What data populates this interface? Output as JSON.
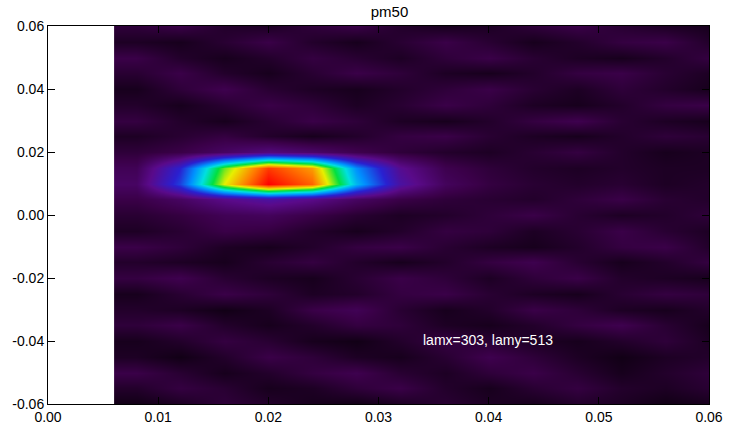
{
  "chart_data": {
    "type": "heatmap",
    "title": "pm50",
    "annotations": [
      "lamx=303, lamy=513"
    ],
    "x": [
      0.008,
      0.012,
      0.016,
      0.02,
      0.024,
      0.028,
      0.032,
      0.036,
      0.04,
      0.044,
      0.048,
      0.052,
      0.056,
      0.06
    ],
    "y": [
      -0.06,
      -0.055,
      -0.05,
      -0.045,
      -0.04,
      -0.035,
      -0.03,
      -0.025,
      -0.02,
      -0.015,
      -0.01,
      -0.005,
      0.0,
      0.005,
      0.01,
      0.015,
      0.02,
      0.025,
      0.03,
      0.035,
      0.04,
      0.045,
      0.05,
      0.055,
      0.06
    ],
    "z": [
      [
        0.03,
        0.05,
        0.08,
        0.06,
        0.04,
        0.03,
        0.05,
        0.07,
        0.05,
        0.04,
        0.06,
        0.05,
        0.03,
        0.04
      ],
      [
        0.06,
        0.09,
        0.07,
        0.04,
        0.05,
        0.08,
        0.1,
        0.06,
        0.04,
        0.07,
        0.09,
        0.06,
        0.05,
        0.07
      ],
      [
        0.1,
        0.07,
        0.04,
        0.06,
        0.09,
        0.11,
        0.07,
        0.05,
        0.08,
        0.1,
        0.07,
        0.04,
        0.06,
        0.08
      ],
      [
        0.05,
        0.03,
        0.06,
        0.1,
        0.08,
        0.05,
        0.04,
        0.07,
        0.11,
        0.08,
        0.05,
        0.03,
        0.05,
        0.06
      ],
      [
        0.04,
        0.06,
        0.09,
        0.07,
        0.04,
        0.03,
        0.06,
        0.09,
        0.07,
        0.05,
        0.04,
        0.06,
        0.08,
        0.05
      ],
      [
        0.08,
        0.1,
        0.06,
        0.04,
        0.06,
        0.09,
        0.08,
        0.05,
        0.04,
        0.06,
        0.09,
        0.11,
        0.07,
        0.04
      ],
      [
        0.06,
        0.05,
        0.03,
        0.05,
        0.1,
        0.12,
        0.07,
        0.04,
        0.06,
        0.1,
        0.08,
        0.05,
        0.04,
        0.06
      ],
      [
        0.04,
        0.07,
        0.1,
        0.08,
        0.05,
        0.06,
        0.09,
        0.1,
        0.07,
        0.05,
        0.04,
        0.07,
        0.09,
        0.08
      ],
      [
        0.09,
        0.11,
        0.07,
        0.05,
        0.04,
        0.07,
        0.1,
        0.08,
        0.05,
        0.08,
        0.1,
        0.06,
        0.05,
        0.04
      ],
      [
        0.06,
        0.05,
        0.04,
        0.07,
        0.09,
        0.06,
        0.04,
        0.06,
        0.09,
        0.11,
        0.07,
        0.04,
        0.06,
        0.09
      ],
      [
        0.1,
        0.08,
        0.05,
        0.04,
        0.06,
        0.09,
        0.1,
        0.07,
        0.05,
        0.04,
        0.06,
        0.09,
        0.1,
        0.06
      ],
      [
        0.05,
        0.07,
        0.1,
        0.09,
        0.06,
        0.04,
        0.06,
        0.09,
        0.08,
        0.05,
        0.07,
        0.1,
        0.07,
        0.05
      ],
      [
        0.07,
        0.09,
        0.12,
        0.13,
        0.1,
        0.07,
        0.05,
        0.06,
        0.08,
        0.1,
        0.07,
        0.05,
        0.06,
        0.08
      ],
      [
        0.1,
        0.14,
        0.2,
        0.24,
        0.2,
        0.14,
        0.1,
        0.08,
        0.07,
        0.06,
        0.08,
        0.1,
        0.07,
        0.06
      ],
      [
        0.14,
        0.36,
        0.76,
        1.0,
        0.9,
        0.5,
        0.24,
        0.13,
        0.09,
        0.07,
        0.06,
        0.07,
        0.05,
        0.06
      ],
      [
        0.12,
        0.32,
        0.7,
        0.94,
        0.84,
        0.45,
        0.21,
        0.11,
        0.08,
        0.06,
        0.05,
        0.06,
        0.05,
        0.05
      ],
      [
        0.08,
        0.1,
        0.14,
        0.18,
        0.15,
        0.11,
        0.08,
        0.06,
        0.05,
        0.07,
        0.09,
        0.06,
        0.04,
        0.05
      ],
      [
        0.05,
        0.07,
        0.09,
        0.06,
        0.04,
        0.06,
        0.09,
        0.1,
        0.07,
        0.05,
        0.04,
        0.06,
        0.08,
        0.07
      ],
      [
        0.09,
        0.06,
        0.04,
        0.07,
        0.1,
        0.08,
        0.05,
        0.04,
        0.06,
        0.09,
        0.11,
        0.07,
        0.05,
        0.04
      ],
      [
        0.06,
        0.04,
        0.07,
        0.1,
        0.08,
        0.05,
        0.07,
        0.1,
        0.08,
        0.05,
        0.04,
        0.06,
        0.09,
        0.1
      ],
      [
        0.04,
        0.08,
        0.11,
        0.07,
        0.05,
        0.04,
        0.06,
        0.08,
        0.1,
        0.07,
        0.05,
        0.08,
        0.06,
        0.04
      ],
      [
        0.07,
        0.1,
        0.06,
        0.04,
        0.07,
        0.1,
        0.08,
        0.05,
        0.04,
        0.06,
        0.09,
        0.1,
        0.07,
        0.05
      ],
      [
        0.1,
        0.06,
        0.04,
        0.06,
        0.09,
        0.07,
        0.05,
        0.08,
        0.1,
        0.07,
        0.05,
        0.04,
        0.06,
        0.09
      ],
      [
        0.05,
        0.04,
        0.07,
        0.1,
        0.06,
        0.04,
        0.07,
        0.1,
        0.07,
        0.04,
        0.06,
        0.09,
        0.1,
        0.06
      ],
      [
        0.08,
        0.1,
        0.06,
        0.05,
        0.08,
        0.1,
        0.06,
        0.04,
        0.05,
        0.08,
        0.1,
        0.07,
        0.05,
        0.04
      ]
    ],
    "zlim": [
      0,
      1
    ],
    "xlim": [
      0,
      0.06
    ],
    "ylim": [
      -0.06,
      0.06
    ],
    "xticks": [
      {
        "value": 0,
        "label": "0.00"
      },
      {
        "value": 0.01,
        "label": "0.01"
      },
      {
        "value": 0.02,
        "label": "0.02"
      },
      {
        "value": 0.03,
        "label": "0.03"
      },
      {
        "value": 0.04,
        "label": "0.04"
      },
      {
        "value": 0.05,
        "label": "0.05"
      },
      {
        "value": 0.06,
        "label": "0.06"
      }
    ],
    "yticks": [
      {
        "value": -0.06,
        "label": "-0.06"
      },
      {
        "value": -0.04,
        "label": "-0.04"
      },
      {
        "value": -0.02,
        "label": "-0.02"
      },
      {
        "value": 0,
        "label": "0.00"
      },
      {
        "value": 0.02,
        "label": "0.02"
      },
      {
        "value": 0.04,
        "label": "0.04"
      },
      {
        "value": 0.06,
        "label": "0.06"
      }
    ],
    "grid": false
  }
}
